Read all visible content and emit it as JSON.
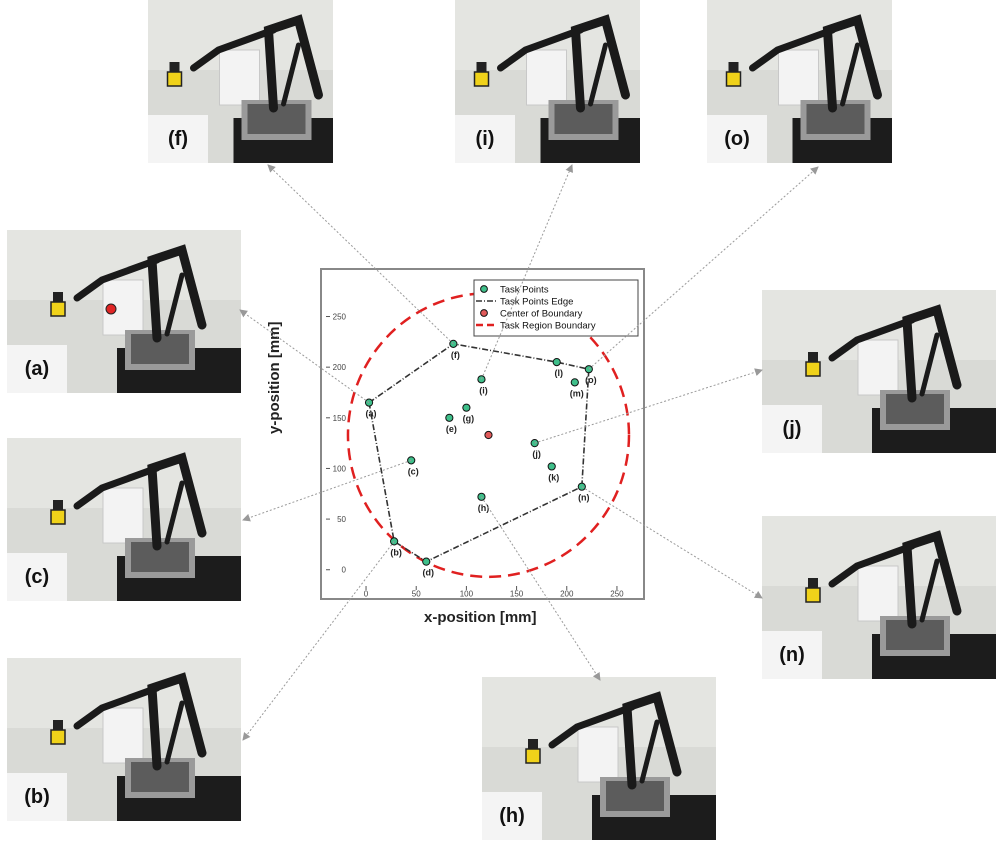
{
  "chart_data": {
    "type": "scatter",
    "xlabel": "x-position [mm]",
    "ylabel": "y-position [mm]",
    "xlim": [
      -10,
      265
    ],
    "ylim": [
      -20,
      290
    ],
    "xticks": [
      0,
      50,
      100,
      150,
      200,
      250
    ],
    "yticks": [
      0,
      50,
      100,
      150,
      200,
      250
    ],
    "xtick_labels": [
      "0",
      "50",
      "100",
      "150",
      "200",
      "250"
    ],
    "ytick_labels": [
      "0",
      "50",
      "100",
      "150",
      "200",
      "250"
    ],
    "legend_position": "top-right",
    "legend": [
      "Task Points",
      "Task Points Edge",
      "Center of Boundary",
      "Task Region Boundary"
    ],
    "colors": {
      "task_point": "#3fbf8a",
      "center": "#e05a5a",
      "boundary": "#e02020",
      "edge": "#333333"
    },
    "points": [
      {
        "label": "(a)",
        "x": 3,
        "y": 165
      },
      {
        "label": "(b)",
        "x": 28,
        "y": 28
      },
      {
        "label": "(c)",
        "x": 45,
        "y": 108
      },
      {
        "label": "(d)",
        "x": 60,
        "y": 8
      },
      {
        "label": "(e)",
        "x": 83,
        "y": 150
      },
      {
        "label": "(f)",
        "x": 87,
        "y": 223
      },
      {
        "label": "(g)",
        "x": 100,
        "y": 160
      },
      {
        "label": "(h)",
        "x": 115,
        "y": 72
      },
      {
        "label": "(i)",
        "x": 115,
        "y": 188
      },
      {
        "label": "(j)",
        "x": 168,
        "y": 125
      },
      {
        "label": "(k)",
        "x": 185,
        "y": 102
      },
      {
        "label": "(l)",
        "x": 190,
        "y": 205
      },
      {
        "label": "(m)",
        "x": 208,
        "y": 185
      },
      {
        "label": "(n)",
        "x": 215,
        "y": 82
      },
      {
        "label": "(o)",
        "x": 222,
        "y": 198
      }
    ],
    "edge_order": [
      "(a)",
      "(f)",
      "(l)",
      "(o)",
      "(n)",
      "(d)",
      "(b)",
      "(a)"
    ],
    "center": {
      "x": 122,
      "y": 133
    },
    "boundary_radius": 140
  },
  "photos": [
    {
      "label": "(f)"
    },
    {
      "label": "(i)"
    },
    {
      "label": "(o)"
    },
    {
      "label": "(a)"
    },
    {
      "label": "(j)"
    },
    {
      "label": "(c)"
    },
    {
      "label": "(n)"
    },
    {
      "label": "(b)"
    },
    {
      "label": "(h)"
    }
  ]
}
